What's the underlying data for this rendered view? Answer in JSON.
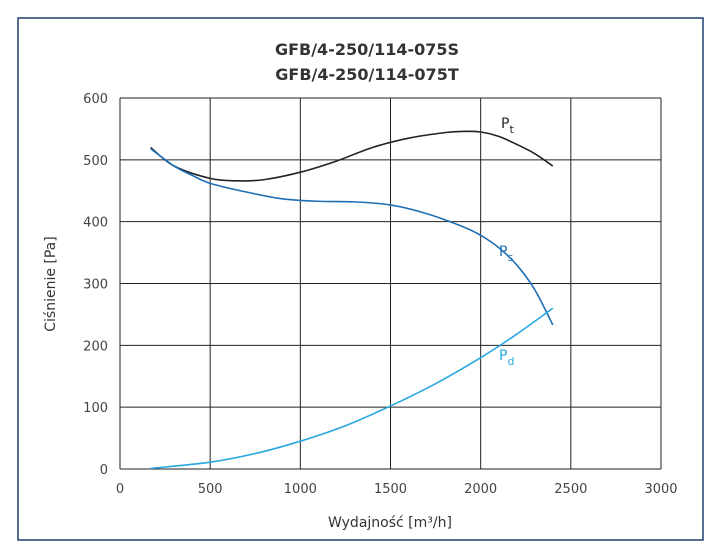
{
  "chart_data": {
    "type": "line",
    "title": "GFB/4-250/114-075S",
    "subtitle": "GFB/4-250/114-075T",
    "x_label": "Wydajność [m³/h]",
    "y_label": "Ciśnienie [Pa]",
    "xlim": [
      0,
      3000
    ],
    "xticks": [
      0,
      500,
      1000,
      1500,
      2000,
      2500,
      3000
    ],
    "ylim": [
      0,
      600
    ],
    "yticks": [
      0,
      100,
      200,
      300,
      400,
      500,
      600
    ],
    "grid": true,
    "series": [
      {
        "name": "P",
        "subscript": "t",
        "color": "#222222",
        "x": [
          170,
          300,
          500,
          650,
          800,
          1000,
          1200,
          1400,
          1600,
          1800,
          1900,
          2000,
          2100,
          2200,
          2300,
          2400
        ],
        "values": [
          520,
          490,
          470,
          466,
          468,
          480,
          498,
          520,
          535,
          544,
          546,
          545,
          538,
          525,
          510,
          490
        ]
      },
      {
        "name": "P",
        "subscript": "s",
        "color": "#1f6fb5",
        "x": [
          170,
          300,
          400,
          500,
          700,
          900,
          1100,
          1300,
          1500,
          1700,
          1900,
          2000,
          2100,
          2200,
          2300,
          2400
        ],
        "values": [
          518,
          490,
          475,
          462,
          448,
          437,
          433,
          432,
          427,
          413,
          392,
          378,
          358,
          330,
          290,
          233
        ]
      },
      {
        "name": "P",
        "subscript": "d",
        "color": "#29a8e0",
        "x": [
          170,
          500,
          750,
          1000,
          1250,
          1500,
          1750,
          2000,
          2200,
          2400
        ],
        "values": [
          1,
          11,
          25,
          45,
          70,
          102,
          138,
          180,
          218,
          260
        ]
      }
    ]
  }
}
